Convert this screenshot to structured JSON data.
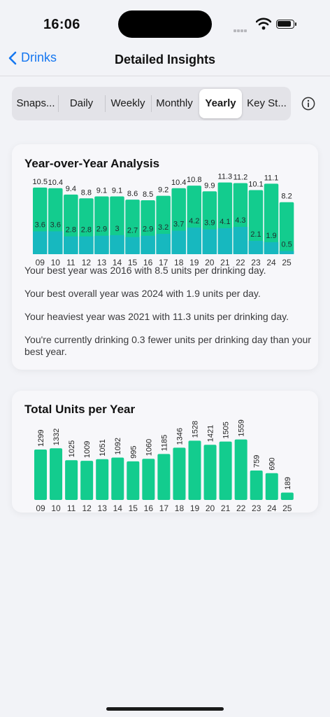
{
  "status_bar": {
    "time": "16:06"
  },
  "nav": {
    "back_label": "Drinks",
    "title": "Detailed Insights"
  },
  "segments": [
    "Snaps...",
    "Daily",
    "Weekly",
    "Monthly",
    "Yearly",
    "Key St..."
  ],
  "active_segment": "Yearly",
  "colors": {
    "accent": "#1677f0",
    "bar_green": "#13cc8e",
    "bar_teal": "#17b8bf"
  },
  "yoy_card": {
    "title": "Year-over-Year Analysis",
    "insights": [
      "Your best year was 2016 with 8.5 units per drinking day.",
      "Your best overall year was 2024 with 1.9 units per day.",
      "Your heaviest year was 2021 with 11.3 units per drinking day.",
      "You're currently drinking 0.3 fewer units per drinking day than your best year."
    ]
  },
  "total_card": {
    "title": "Total Units per Year"
  },
  "chart_data": [
    {
      "type": "bar",
      "categories": [
        "09",
        "10",
        "11",
        "12",
        "13",
        "14",
        "15",
        "16",
        "17",
        "18",
        "19",
        "20",
        "21",
        "22",
        "23",
        "24",
        "25"
      ],
      "series": [
        {
          "values": [
            10.5,
            10.4,
            9.4,
            8.8,
            9.1,
            9.1,
            8.6,
            8.5,
            9.2,
            10.4,
            10.8,
            9.9,
            11.3,
            11.2,
            10.1,
            11.1,
            8.2
          ]
        },
        {
          "values": [
            3.6,
            3.6,
            2.8,
            2.8,
            2.9,
            3.0,
            2.7,
            2.9,
            3.2,
            3.7,
            4.2,
            3.9,
            4.1,
            4.3,
            2.1,
            1.9,
            0.5
          ]
        }
      ],
      "ylim": [
        0,
        11.5
      ],
      "grid": false
    },
    {
      "type": "bar",
      "categories": [
        "09",
        "10",
        "11",
        "12",
        "13",
        "14",
        "15",
        "16",
        "17",
        "18",
        "19",
        "20",
        "21",
        "22",
        "23",
        "24",
        "25"
      ],
      "values": [
        1299,
        1332,
        1025,
        1009,
        1051,
        1092,
        995,
        1060,
        1185,
        1346,
        1528,
        1421,
        1505,
        1559,
        759,
        690,
        189
      ],
      "ylim": [
        0,
        1700
      ],
      "grid": false
    }
  ]
}
